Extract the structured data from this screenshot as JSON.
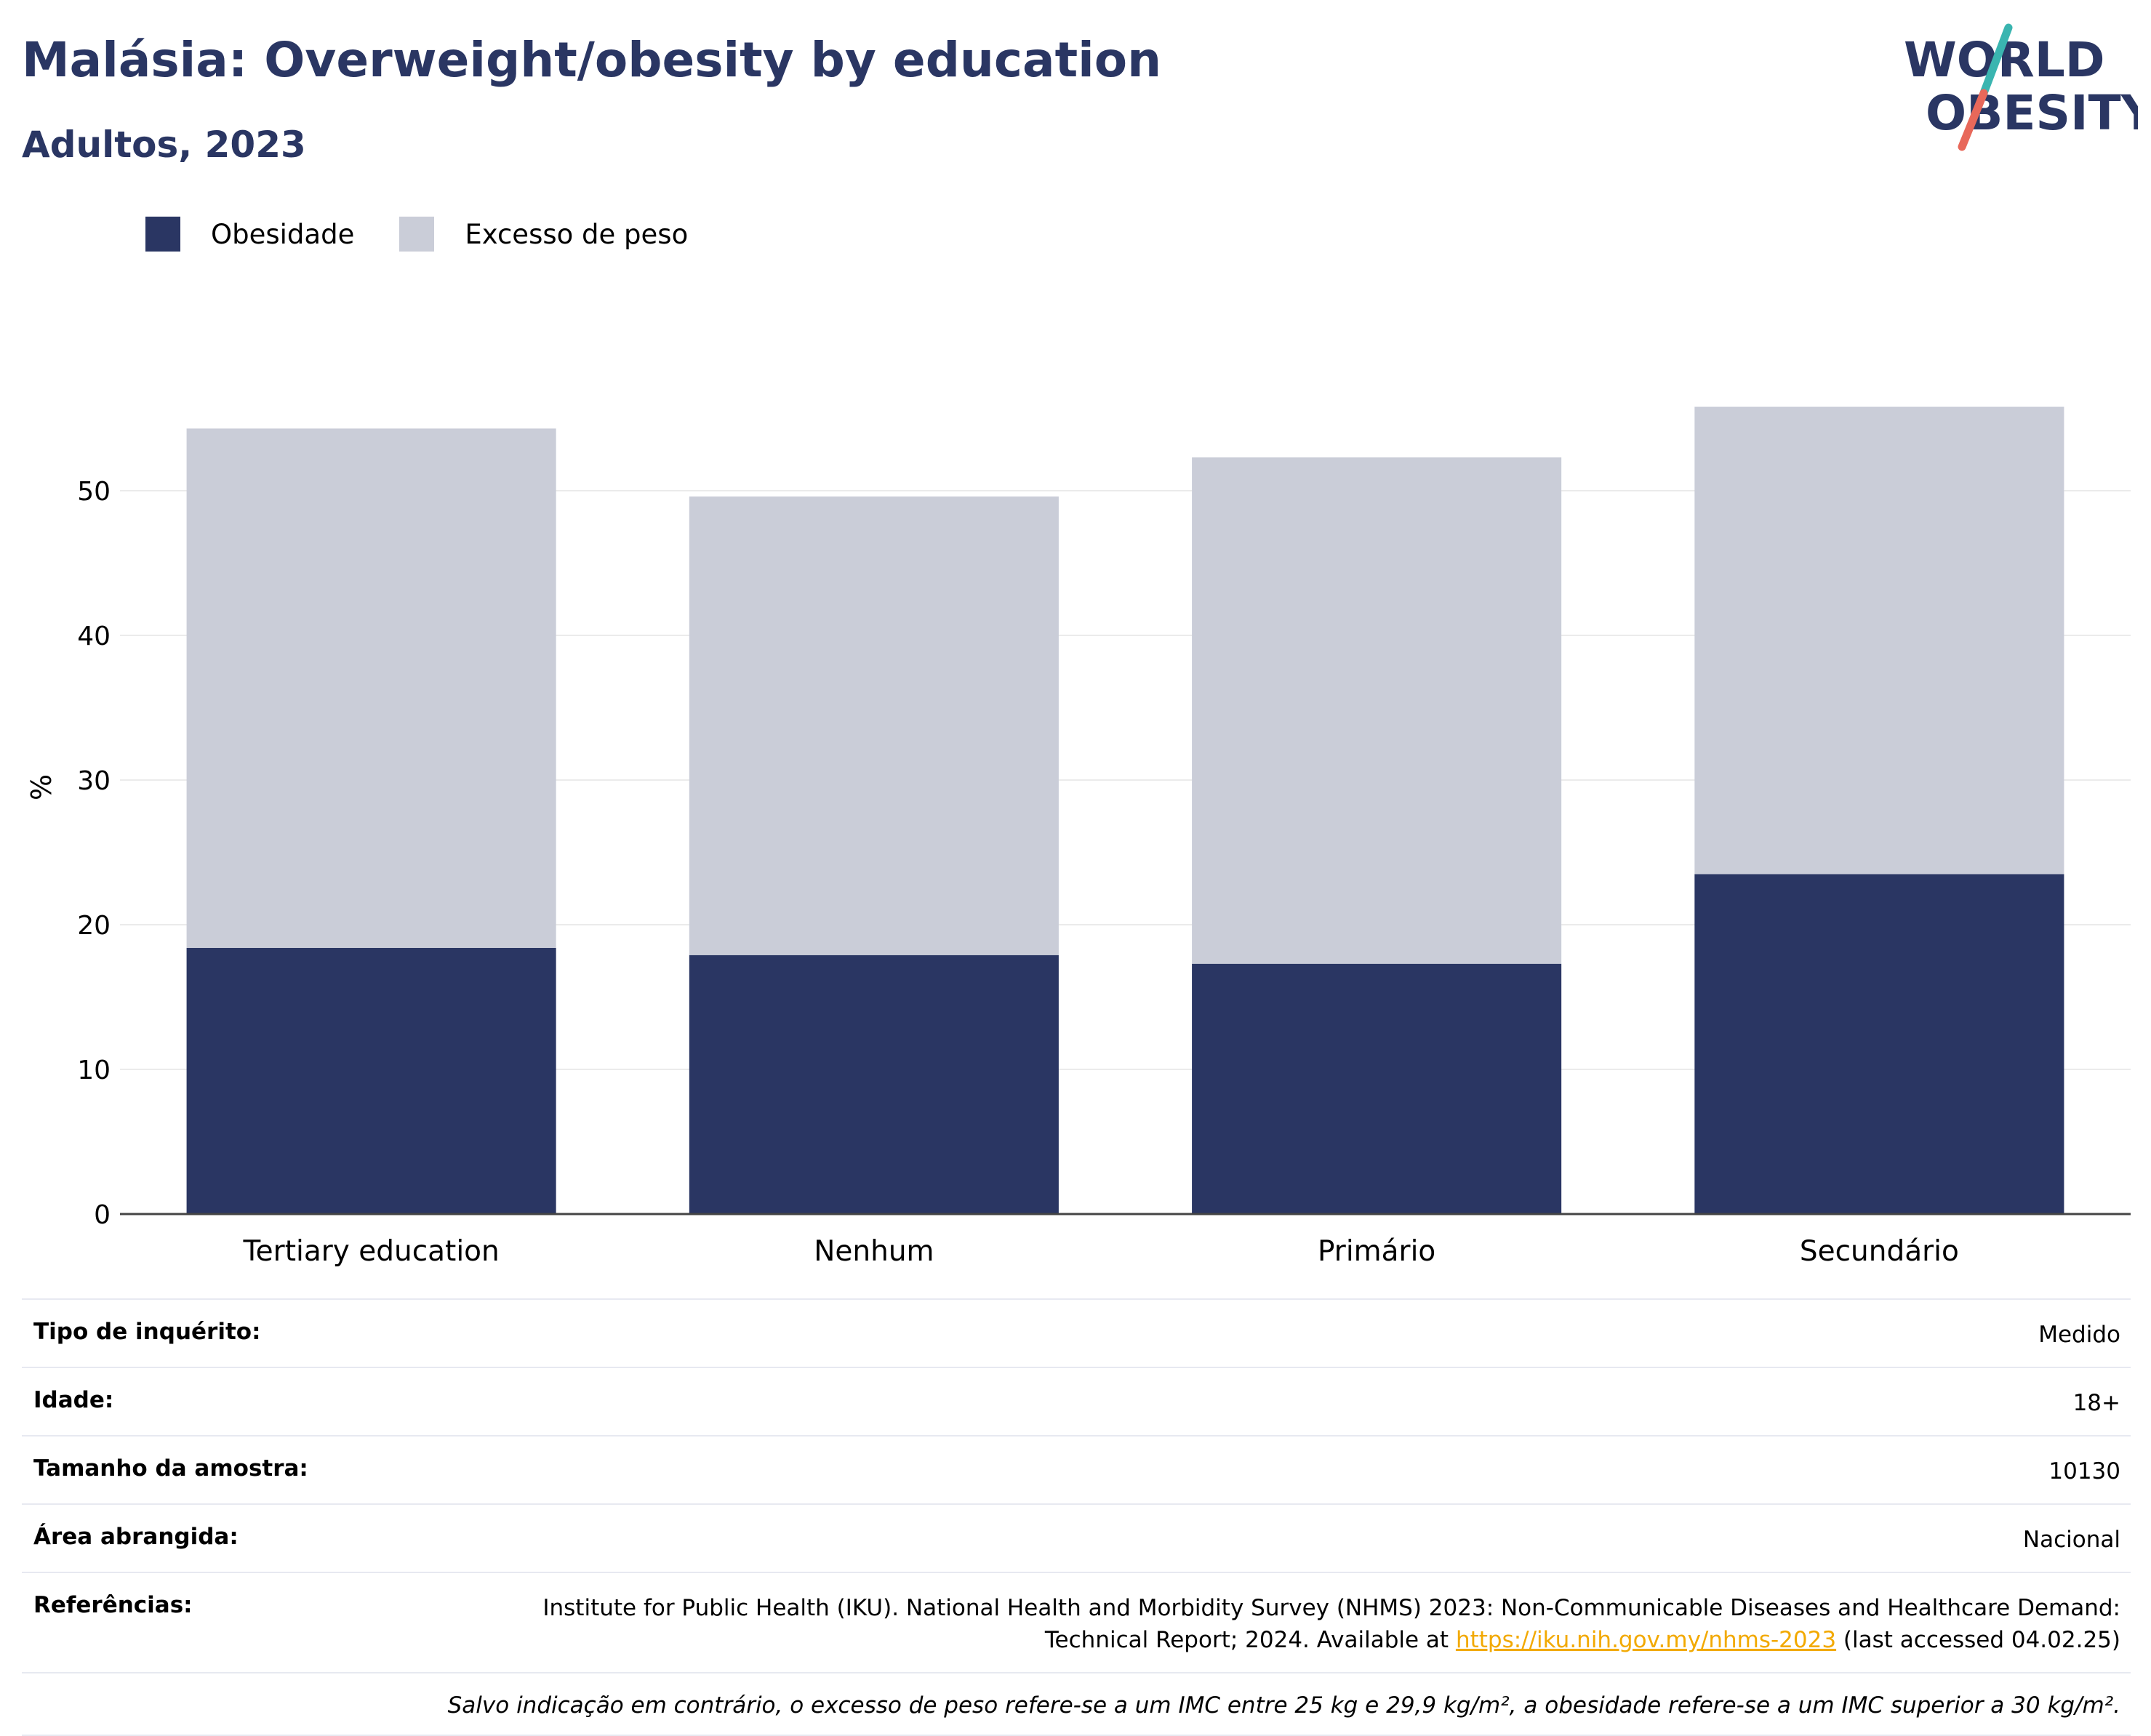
{
  "header": {
    "title": "Malásia: Overweight/obesity by education",
    "subtitle": "Adultos, 2023"
  },
  "logo": {
    "line1": "WORLD",
    "line2": "OBESITY",
    "colors": {
      "text": "#2a3663",
      "slash_top": "#3ab5b0",
      "slash_bottom": "#e8685a"
    }
  },
  "legend": {
    "items": [
      {
        "label": "Obesidade",
        "color": "#2a3663"
      },
      {
        "label": "Excesso de peso",
        "color": "#cacdd8"
      }
    ]
  },
  "chart_data": {
    "type": "bar",
    "stacked": true,
    "categories": [
      "Tertiary education",
      "Nenhum",
      "Primário",
      "Secundário"
    ],
    "series": [
      {
        "name": "Obesidade",
        "color": "#2a3663",
        "values": [
          18.4,
          17.9,
          17.3,
          23.5
        ]
      },
      {
        "name": "Excesso de peso",
        "color": "#cacdd8",
        "values": [
          35.9,
          31.7,
          35.0,
          32.3
        ]
      }
    ],
    "ylabel": "%",
    "xlabel": "",
    "ylim": [
      0,
      60
    ],
    "yticks": [
      0,
      10,
      20,
      30,
      40,
      50
    ],
    "grid": true
  },
  "info": {
    "rows": [
      {
        "label": "Tipo de inquérito:",
        "value": "Medido"
      },
      {
        "label": "Idade:",
        "value": "18+"
      },
      {
        "label": "Tamanho da amostra:",
        "value": "10130"
      },
      {
        "label": "Área abrangida:",
        "value": "Nacional"
      }
    ],
    "references": {
      "label": "Referências:",
      "text_before": "Institute for Public Health (IKU). National Health and Morbidity Survey (NHMS) 2023: Non-Communicable Diseases and Healthcare Demand: Technical Report; 2024. Available at ",
      "link": "https://iku.nih.gov.my/nhms-2023",
      "text_after": " (last accessed 04.02.25)"
    },
    "footnote": "Salvo indicação em contrário, o excesso de peso refere-se a um IMC entre 25 kg e 29,9 kg/m², a obesidade refere-se a um IMC superior a 30 kg/m²."
  }
}
